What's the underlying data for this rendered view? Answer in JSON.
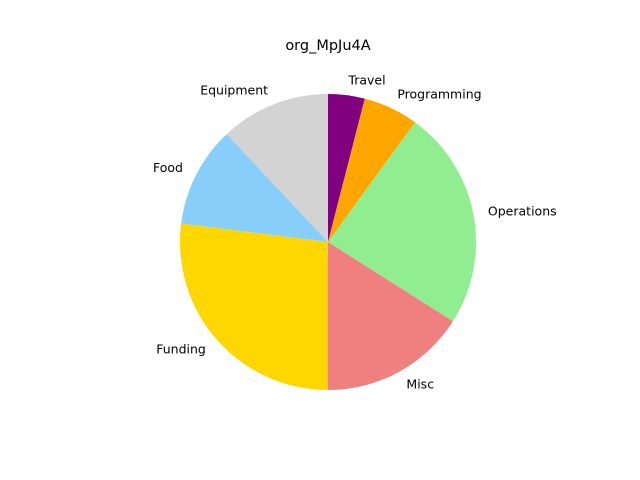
{
  "chart_data": {
    "type": "pie",
    "title": "org_MpJu4A",
    "start_angle_deg": 90,
    "direction": "clockwise",
    "slices": [
      {
        "label": "Travel",
        "value": 4,
        "color": "#800080"
      },
      {
        "label": "Programming",
        "value": 6,
        "color": "#FFA500"
      },
      {
        "label": "Operations",
        "value": 24,
        "color": "#90EE90"
      },
      {
        "label": "Misc",
        "value": 16,
        "color": "#F08080"
      },
      {
        "label": "Funding",
        "value": 27,
        "color": "#FFD700"
      },
      {
        "label": "Food",
        "value": 11,
        "color": "#87CEFA"
      },
      {
        "label": "Equipment",
        "value": 12,
        "color": "#D3D3D3"
      }
    ]
  }
}
